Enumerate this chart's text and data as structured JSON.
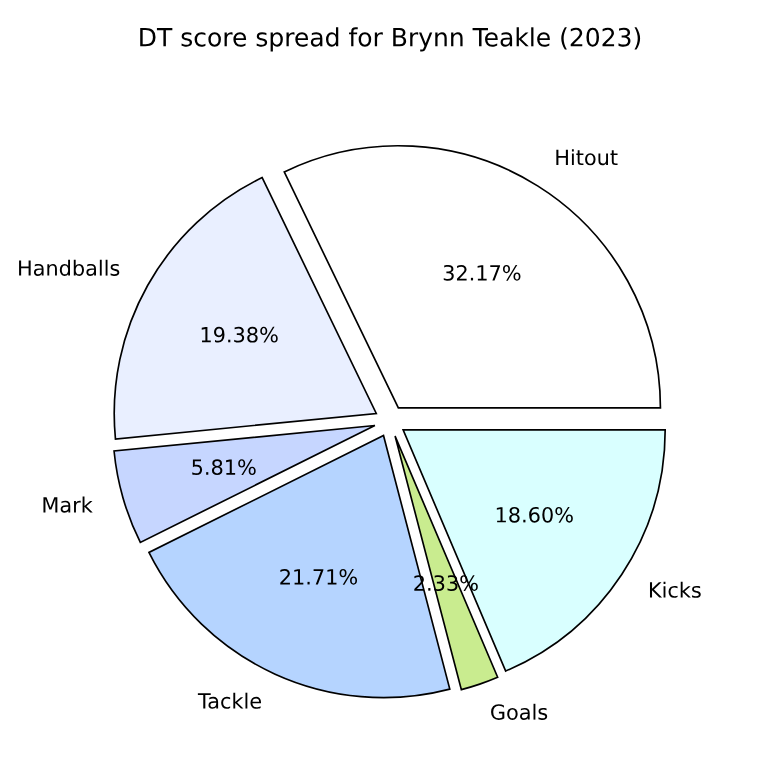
{
  "chart_data": {
    "type": "pie",
    "title": "DT score spread for Brynn Teakle (2023)",
    "categories": [
      "Hitout",
      "Handballs",
      "Mark",
      "Tackle",
      "Goals",
      "Kicks"
    ],
    "values": [
      32.17,
      19.38,
      5.81,
      21.71,
      2.33,
      18.6
    ],
    "value_labels": [
      "32.17%",
      "19.38%",
      "5.81%",
      "21.71%",
      "2.33%",
      "18.60%"
    ],
    "colors": [
      "#ffffff",
      "#e9efff",
      "#c6d6ff",
      "#b5d4ff",
      "#c9ec8f",
      "#d9ffff"
    ]
  }
}
